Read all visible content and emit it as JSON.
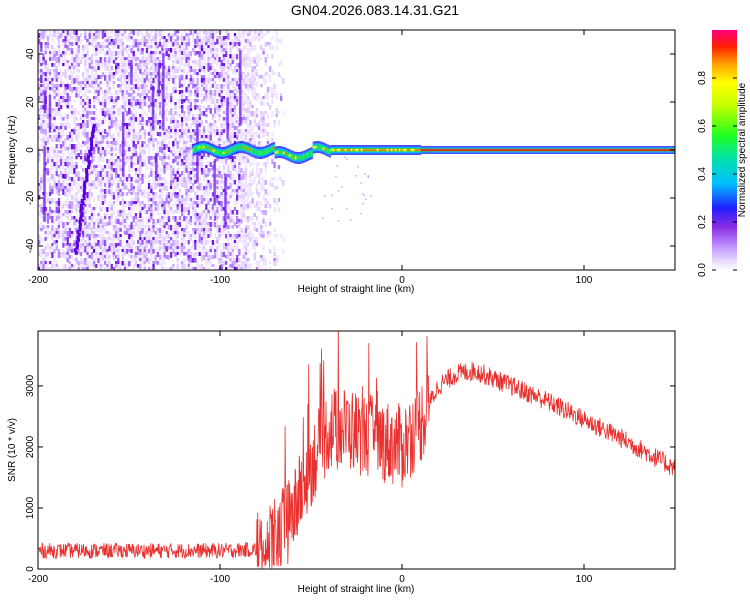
{
  "title": "GN04.2026.083.14.31.G21",
  "chart_data": [
    {
      "type": "heatmap",
      "xlabel": "Height of straight line (km)",
      "ylabel": "Frequency (Hz)",
      "xlim": [
        -200,
        150
      ],
      "ylim": [
        -50,
        50
      ],
      "xticks": [
        -200,
        -100,
        0,
        100
      ],
      "yticks": [
        -40,
        -20,
        0,
        20,
        40
      ],
      "colorbar": {
        "label": "Normalized spectral amplitude",
        "range": [
          0.0,
          1.0
        ],
        "ticks": [
          "0.0",
          "0.2",
          "0.4",
          "0.6",
          "0.8"
        ]
      },
      "features": [
        {
          "name": "broadband noise",
          "x_range": [
            -200,
            -65
          ],
          "y_range": [
            -50,
            50
          ]
        },
        {
          "name": "diagonal streak",
          "x_range": [
            -180,
            -170
          ],
          "y_range": [
            -42,
            12
          ]
        },
        {
          "name": "narrow tone",
          "x_range": [
            -115,
            150
          ],
          "frequency_hz": 0
        }
      ]
    },
    {
      "type": "line",
      "xlabel": "Height of straight line (km)",
      "ylabel": "SNR (10 * v/v)",
      "xlim": [
        -200,
        150
      ],
      "ylim": [
        0,
        3900
      ],
      "xticks": [
        -200,
        -100,
        0,
        100
      ],
      "yticks": [
        0,
        1000,
        2000,
        3000
      ],
      "color": "#e8302e",
      "series": [
        {
          "name": "SNR",
          "x": [
            -200,
            -150,
            -100,
            -80,
            -70,
            -60,
            -50,
            -40,
            -30,
            -20,
            -10,
            0,
            10,
            20,
            30,
            40,
            60,
            80,
            100,
            120,
            150
          ],
          "y": [
            300,
            300,
            300,
            320,
            450,
            900,
            1700,
            2300,
            2300,
            2200,
            2100,
            2000,
            2400,
            3000,
            3200,
            3250,
            3000,
            2750,
            2450,
            2150,
            1650
          ]
        }
      ]
    }
  ]
}
